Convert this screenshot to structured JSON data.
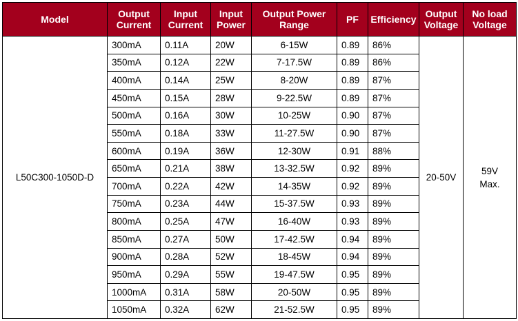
{
  "headers": [
    [
      "Model",
      ""
    ],
    [
      "Output",
      "Current"
    ],
    [
      "Input",
      "Current"
    ],
    [
      "Input",
      "Power"
    ],
    [
      "Output Power",
      "Range"
    ],
    [
      "PF",
      ""
    ],
    [
      "Efficiency",
      ""
    ],
    [
      "Output",
      "Voltage"
    ],
    [
      "No load",
      "Voltage"
    ]
  ],
  "model": "L50C300-1050D-D",
  "output_voltage": "20-50V",
  "no_load_voltage": [
    "59V",
    "Max."
  ],
  "rows": [
    {
      "output_current": "300mA",
      "input_current": "0.11A",
      "input_power": "20W",
      "output_power_range": "6-15W",
      "pf": "0.89",
      "efficiency": "86%"
    },
    {
      "output_current": "350mA",
      "input_current": "0.12A",
      "input_power": "22W",
      "output_power_range": "7-17.5W",
      "pf": "0.89",
      "efficiency": "86%"
    },
    {
      "output_current": "400mA",
      "input_current": "0.14A",
      "input_power": "25W",
      "output_power_range": "8-20W",
      "pf": "0.89",
      "efficiency": "87%"
    },
    {
      "output_current": "450mA",
      "input_current": "0.15A",
      "input_power": "28W",
      "output_power_range": "9-22.5W",
      "pf": "0.89",
      "efficiency": "87%"
    },
    {
      "output_current": "500mA",
      "input_current": "0.16A",
      "input_power": "30W",
      "output_power_range": "10-25W",
      "pf": "0.90",
      "efficiency": "87%"
    },
    {
      "output_current": "550mA",
      "input_current": "0.18A",
      "input_power": "33W",
      "output_power_range": "11-27.5W",
      "pf": "0.90",
      "efficiency": "87%"
    },
    {
      "output_current": "600mA",
      "input_current": "0.19A",
      "input_power": "36W",
      "output_power_range": "12-30W",
      "pf": "0.91",
      "efficiency": "88%"
    },
    {
      "output_current": "650mA",
      "input_current": "0.21A",
      "input_power": "38W",
      "output_power_range": "13-32.5W",
      "pf": "0.92",
      "efficiency": "89%"
    },
    {
      "output_current": "700mA",
      "input_current": "0.22A",
      "input_power": "42W",
      "output_power_range": "14-35W",
      "pf": "0.92",
      "efficiency": "89%"
    },
    {
      "output_current": "750mA",
      "input_current": "0.23A",
      "input_power": "44W",
      "output_power_range": "15-37.5W",
      "pf": "0.93",
      "efficiency": "89%"
    },
    {
      "output_current": "800mA",
      "input_current": "0.25A",
      "input_power": "47W",
      "output_power_range": "16-40W",
      "pf": "0.93",
      "efficiency": "89%"
    },
    {
      "output_current": "850mA",
      "input_current": "0.27A",
      "input_power": "50W",
      "output_power_range": "17-42.5W",
      "pf": "0.94",
      "efficiency": "89%"
    },
    {
      "output_current": "900mA",
      "input_current": "0.28A",
      "input_power": "52W",
      "output_power_range": "18-45W",
      "pf": "0.94",
      "efficiency": "89%"
    },
    {
      "output_current": "950mA",
      "input_current": "0.29A",
      "input_power": "55W",
      "output_power_range": "19-47.5W",
      "pf": "0.95",
      "efficiency": "89%"
    },
    {
      "output_current": "1000mA",
      "input_current": "0.31A",
      "input_power": "58W",
      "output_power_range": "20-50W",
      "pf": "0.95",
      "efficiency": "89%"
    },
    {
      "output_current": "1050mA",
      "input_current": "0.32A",
      "input_power": "62W",
      "output_power_range": "21-52.5W",
      "pf": "0.95",
      "efficiency": "89%"
    }
  ],
  "colors": {
    "header_bg": "#a3001d",
    "header_text": "#ffffff",
    "border": "#000000"
  }
}
